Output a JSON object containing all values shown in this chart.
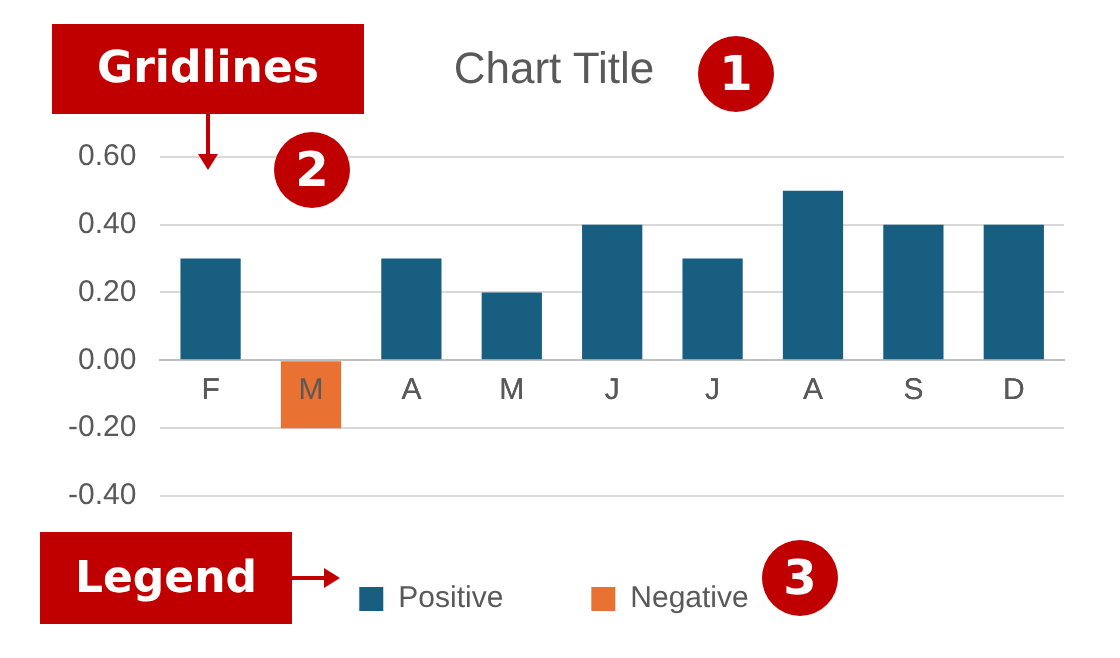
{
  "chart_data": {
    "type": "bar",
    "title": "Chart Title",
    "categories": [
      "F",
      "M",
      "A",
      "M",
      "J",
      "J",
      "A",
      "S",
      "D"
    ],
    "series": [
      {
        "name": "Positive",
        "color": "#175e80",
        "values": [
          0.3,
          null,
          0.3,
          0.2,
          0.4,
          0.3,
          0.5,
          0.4,
          0.4
        ]
      },
      {
        "name": "Negative",
        "color": "#e97132",
        "values": [
          null,
          -0.2,
          null,
          null,
          null,
          null,
          null,
          null,
          null
        ]
      }
    ],
    "stacked": true,
    "ylim": [
      -0.4,
      0.6
    ],
    "yticks": [
      {
        "value": -0.4,
        "label": "-0.40"
      },
      {
        "value": -0.2,
        "label": "-0.20"
      },
      {
        "value": 0,
        "label": "0.00"
      },
      {
        "value": 0.2,
        "label": "0.20"
      },
      {
        "value": 0.4,
        "label": "0.40"
      },
      {
        "value": 0.6,
        "label": "0.60"
      }
    ],
    "grid": "y",
    "legend": "bottom",
    "annotations": [
      "Gridlines",
      "1",
      "2",
      "Legend",
      "3"
    ]
  }
}
